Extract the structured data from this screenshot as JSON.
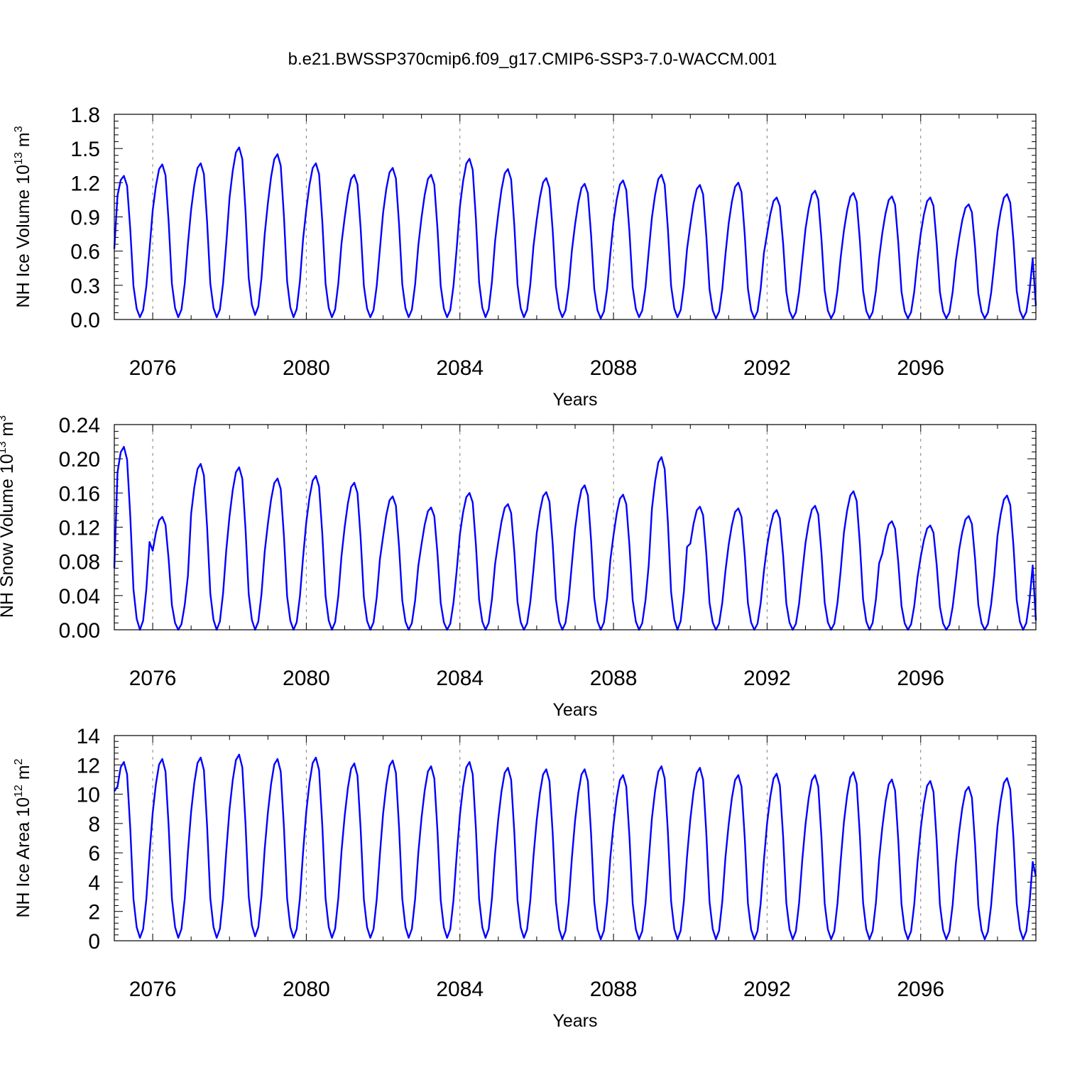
{
  "title": "b.e21.BWSSP370cmip6.f09_g17.CMIP6-SSP3-7.0-WACCM.001",
  "colors": {
    "line": "#0000ff",
    "axis": "#000000",
    "grid": "#808080"
  },
  "chart_data": [
    {
      "type": "line",
      "ylabel": "NH Ice Volume 10",
      "ylabel_exp": "13",
      "ylabel_unit": " m",
      "ylabel_unit_exp": "3",
      "xlabel": "Years",
      "xlim": [
        2075.0,
        2099.0
      ],
      "ylim": [
        0.0,
        1.8
      ],
      "yticks": [
        0.0,
        0.3,
        0.6,
        0.9,
        1.2,
        1.5,
        1.8
      ],
      "ytick_labels": [
        "0.0",
        "0.3",
        "0.6",
        "0.9",
        "1.2",
        "1.5",
        "1.8"
      ],
      "xticks": [
        2076,
        2080,
        2084,
        2088,
        2092,
        2096
      ],
      "xtick_labels": [
        "2076",
        "2080",
        "2084",
        "2088",
        "2092",
        "2096"
      ],
      "series": [
        {
          "name": "NH Ice Volume",
          "start_year": 2075.0,
          "start_month": 0,
          "annual_max": [
            1.26,
            1.36,
            1.37,
            1.51,
            1.45,
            1.37,
            1.27,
            1.33,
            1.27,
            1.41,
            1.32,
            1.24,
            1.19,
            1.22,
            1.27,
            1.18,
            1.2,
            1.07,
            1.13,
            1.11,
            1.08,
            1.07,
            1.01,
            1.1
          ],
          "annual_min": [
            0.02,
            0.02,
            0.02,
            0.04,
            0.02,
            0.02,
            0.02,
            0.02,
            0.02,
            0.02,
            0.02,
            0.02,
            0.01,
            0.02,
            0.02,
            0.01,
            0.01,
            0.01,
            0.01,
            0.01,
            0.01,
            0.01,
            0.01,
            0.01
          ],
          "start_value": 0.62,
          "end_value": 0.12
        }
      ]
    },
    {
      "type": "line",
      "ylabel": "NH Snow Volume 10",
      "ylabel_exp": "13",
      "ylabel_unit": " m",
      "ylabel_unit_exp": "3",
      "xlabel": "Years",
      "xlim": [
        2075.0,
        2099.0
      ],
      "ylim": [
        0.0,
        0.24
      ],
      "yticks": [
        0.0,
        0.04,
        0.08,
        0.12,
        0.16,
        0.2,
        0.24
      ],
      "ytick_labels": [
        "0.00",
        "0.04",
        "0.08",
        "0.12",
        "0.16",
        "0.20",
        "0.24"
      ],
      "xticks": [
        2076,
        2080,
        2084,
        2088,
        2092,
        2096
      ],
      "xtick_labels": [
        "2076",
        "2080",
        "2084",
        "2088",
        "2092",
        "2096"
      ],
      "series": [
        {
          "name": "NH Snow Volume",
          "start_year": 2075.0,
          "start_month": 0,
          "annual_max": [
            0.214,
            0.132,
            0.194,
            0.19,
            0.177,
            0.18,
            0.172,
            0.156,
            0.143,
            0.16,
            0.147,
            0.161,
            0.169,
            0.158,
            0.202,
            0.144,
            0.142,
            0.14,
            0.145,
            0.162,
            0.127,
            0.122,
            0.133,
            0.157
          ],
          "annual_min": [
            0.0,
            0.0,
            0.0,
            0.0,
            0.0,
            0.0,
            0.0,
            0.0,
            0.0,
            0.0,
            0.0,
            0.0,
            0.0,
            0.0,
            0.0,
            0.0,
            0.0,
            0.0,
            0.0,
            0.0,
            0.0,
            0.0,
            0.0,
            0.0
          ],
          "start_value": 0.072,
          "end_value": 0.011
        }
      ]
    },
    {
      "type": "line",
      "ylabel": "NH Ice Area 10",
      "ylabel_exp": "12",
      "ylabel_unit": " m",
      "ylabel_unit_exp": "2",
      "xlabel": "Years",
      "xlim": [
        2075.0,
        2099.0
      ],
      "ylim": [
        0,
        14
      ],
      "yticks": [
        0,
        2,
        4,
        6,
        8,
        10,
        12,
        14
      ],
      "ytick_labels": [
        "0",
        "2",
        "4",
        "6",
        "8",
        "10",
        "12",
        "14"
      ],
      "xticks": [
        2076,
        2080,
        2084,
        2088,
        2092,
        2096
      ],
      "xtick_labels": [
        "2076",
        "2080",
        "2084",
        "2088",
        "2092",
        "2096"
      ],
      "series": [
        {
          "name": "NH Ice Area",
          "start_year": 2075.0,
          "start_month": 0,
          "annual_max": [
            12.2,
            12.4,
            12.5,
            12.7,
            12.4,
            12.5,
            12.1,
            12.3,
            11.9,
            12.2,
            11.8,
            11.7,
            11.7,
            11.3,
            11.9,
            11.8,
            11.3,
            11.4,
            11.3,
            11.5,
            11.0,
            10.9,
            10.5,
            11.1
          ],
          "annual_min": [
            0.2,
            0.2,
            0.2,
            0.3,
            0.2,
            0.2,
            0.2,
            0.2,
            0.2,
            0.2,
            0.2,
            0.1,
            0.1,
            0.1,
            0.1,
            0.1,
            0.1,
            0.1,
            0.1,
            0.1,
            0.1,
            0.1,
            0.1,
            0.1
          ],
          "start_value": 10.2,
          "end_value": 4.4
        }
      ]
    }
  ]
}
